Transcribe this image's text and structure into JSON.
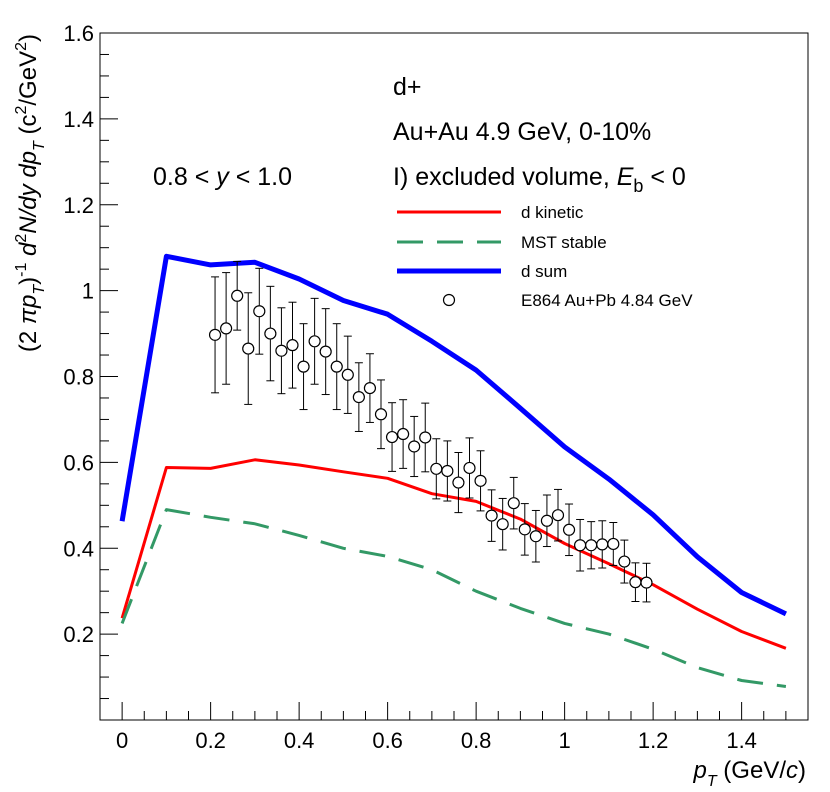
{
  "chart_data": {
    "type": "line",
    "title": "",
    "xlabel": {
      "var": "p",
      "sub": "T",
      "unit": " (GeV/",
      "unit_italic": "c",
      "unit_end": ")"
    },
    "ylabel": {
      "p1": "(2 ",
      "pi": "π",
      "p2": "p",
      "sub1": "T",
      "p3": ")",
      "sup1": "-1",
      "p4": " d",
      "sup2": "2",
      "p5": "N/dy dp",
      "sub2": "T",
      "p6": " (c",
      "sup3": "2",
      "p7": "/GeV",
      "sup4": "2",
      "p8": ")"
    },
    "xlim": [
      -0.05,
      1.55
    ],
    "ylim": [
      0.0,
      1.6
    ],
    "xticks": [
      0,
      0.2,
      0.4,
      0.6,
      0.8,
      1,
      1.2,
      1.4
    ],
    "xtick_labels": [
      "0",
      "0.2",
      "0.4",
      "0.6",
      "0.8",
      "1",
      "1.2",
      "1.4"
    ],
    "yticks": [
      0.2,
      0.4,
      0.6,
      0.8,
      1,
      1.2,
      1.4,
      1.6
    ],
    "ytick_labels": [
      "0.2",
      "0.4",
      "0.6",
      "0.8",
      "1",
      "1.2",
      "1.4",
      "1.6"
    ],
    "annotations": {
      "particle": "d+",
      "system": "Au+Au 4.9 GeV, 0-10%",
      "model_prefix": "I) excluded volume, ",
      "model_var": "E",
      "model_sub": "b",
      "model_suffix": " < 0",
      "rapidity_prefix": "0.8 < ",
      "rapidity_var": "y",
      "rapidity_suffix": " < 1.0"
    },
    "series": [
      {
        "name": "d kinetic",
        "color": "#ff0000",
        "style": "solid",
        "width": 3,
        "x": [
          0.0,
          0.1,
          0.2,
          0.3,
          0.4,
          0.5,
          0.6,
          0.7,
          0.8,
          0.9,
          1.0,
          1.1,
          1.2,
          1.3,
          1.4,
          1.5
        ],
        "y": [
          0.237,
          0.588,
          0.586,
          0.606,
          0.594,
          0.578,
          0.563,
          0.527,
          0.509,
          0.468,
          0.411,
          0.364,
          0.315,
          0.258,
          0.206,
          0.167
        ]
      },
      {
        "name": "MST stable",
        "color": "#339966",
        "style": "dashed",
        "width": 3,
        "x": [
          0.0,
          0.1,
          0.2,
          0.3,
          0.4,
          0.5,
          0.6,
          0.7,
          0.8,
          0.9,
          1.0,
          1.1,
          1.2,
          1.3,
          1.4,
          1.5
        ],
        "y": [
          0.225,
          0.49,
          0.472,
          0.457,
          0.43,
          0.4,
          0.381,
          0.35,
          0.3,
          0.26,
          0.225,
          0.2,
          0.165,
          0.122,
          0.092,
          0.078
        ]
      },
      {
        "name": "d sum",
        "color": "#0000ff",
        "style": "solid",
        "width": 5,
        "x": [
          0.0,
          0.1,
          0.2,
          0.3,
          0.4,
          0.5,
          0.6,
          0.7,
          0.8,
          0.9,
          1.0,
          1.1,
          1.2,
          1.3,
          1.4,
          1.5
        ],
        "y": [
          0.463,
          1.08,
          1.06,
          1.066,
          1.027,
          0.977,
          0.945,
          0.882,
          0.815,
          0.726,
          0.636,
          0.561,
          0.478,
          0.38,
          0.297,
          0.247
        ]
      }
    ],
    "data_points": {
      "name": "E864 Au+Pb 4.84 GeV",
      "x": [
        0.21,
        0.235,
        0.26,
        0.285,
        0.31,
        0.335,
        0.36,
        0.385,
        0.41,
        0.435,
        0.46,
        0.485,
        0.51,
        0.535,
        0.56,
        0.585,
        0.61,
        0.635,
        0.66,
        0.685,
        0.71,
        0.735,
        0.76,
        0.785,
        0.81,
        0.835,
        0.86,
        0.885,
        0.91,
        0.935,
        0.96,
        0.985,
        1.01,
        1.035,
        1.06,
        1.085,
        1.11,
        1.135,
        1.16,
        1.185
      ],
      "y": [
        0.897,
        0.912,
        0.988,
        0.865,
        0.952,
        0.9,
        0.86,
        0.873,
        0.823,
        0.882,
        0.858,
        0.823,
        0.804,
        0.752,
        0.773,
        0.712,
        0.659,
        0.666,
        0.637,
        0.658,
        0.585,
        0.58,
        0.553,
        0.587,
        0.557,
        0.476,
        0.456,
        0.505,
        0.444,
        0.428,
        0.464,
        0.477,
        0.443,
        0.407,
        0.407,
        0.409,
        0.41,
        0.369,
        0.321,
        0.32
      ],
      "err": [
        0.135,
        0.13,
        0.08,
        0.13,
        0.1,
        0.11,
        0.1,
        0.1,
        0.1,
        0.1,
        0.1,
        0.1,
        0.09,
        0.08,
        0.08,
        0.08,
        0.08,
        0.08,
        0.07,
        0.08,
        0.07,
        0.07,
        0.07,
        0.07,
        0.07,
        0.06,
        0.06,
        0.06,
        0.06,
        0.06,
        0.06,
        0.06,
        0.06,
        0.06,
        0.055,
        0.055,
        0.05,
        0.05,
        0.045,
        0.045
      ]
    },
    "legend": {
      "position": "upper-right",
      "entries": [
        "d kinetic",
        "MST stable",
        "d sum",
        "E864 Au+Pb 4.84 GeV"
      ]
    }
  }
}
